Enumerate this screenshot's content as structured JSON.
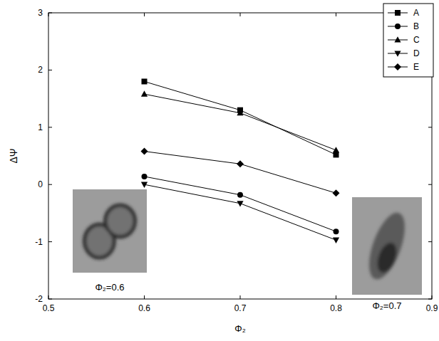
{
  "chart_data": {
    "type": "line",
    "x_label": "Φ₂",
    "y_label": "ΔΨ",
    "x": [
      0.6,
      0.7,
      0.8
    ],
    "series": [
      {
        "name": "A",
        "color": "#000000",
        "marker": "square",
        "line_style": "solid",
        "values": [
          1.8,
          1.3,
          0.52
        ]
      },
      {
        "name": "B",
        "color": "#000000",
        "marker": "circle",
        "line_style": "solid",
        "values": [
          0.14,
          -0.18,
          -0.82
        ]
      },
      {
        "name": "C",
        "color": "#000000",
        "marker": "triangle-up",
        "line_style": "solid",
        "values": [
          1.58,
          1.25,
          0.6
        ]
      },
      {
        "name": "D",
        "color": "#000000",
        "marker": "triangle-down",
        "line_style": "solid",
        "values": [
          0.0,
          -0.33,
          -0.97
        ]
      },
      {
        "name": "E",
        "color": "#000000",
        "marker": "diamond",
        "line_style": "solid",
        "values": [
          0.58,
          0.36,
          -0.15
        ]
      }
    ],
    "xlim": [
      0.5,
      0.9
    ],
    "xticks": [
      0.5,
      0.6,
      0.7,
      0.8,
      0.9
    ],
    "ylim": [
      -2,
      3
    ],
    "yticks": [
      -2,
      -1,
      0,
      1,
      2,
      3
    ],
    "legend": "upper right",
    "grid": false,
    "annotations": [
      "Φ₂=0.6",
      "Φ₂=0.7"
    ]
  }
}
